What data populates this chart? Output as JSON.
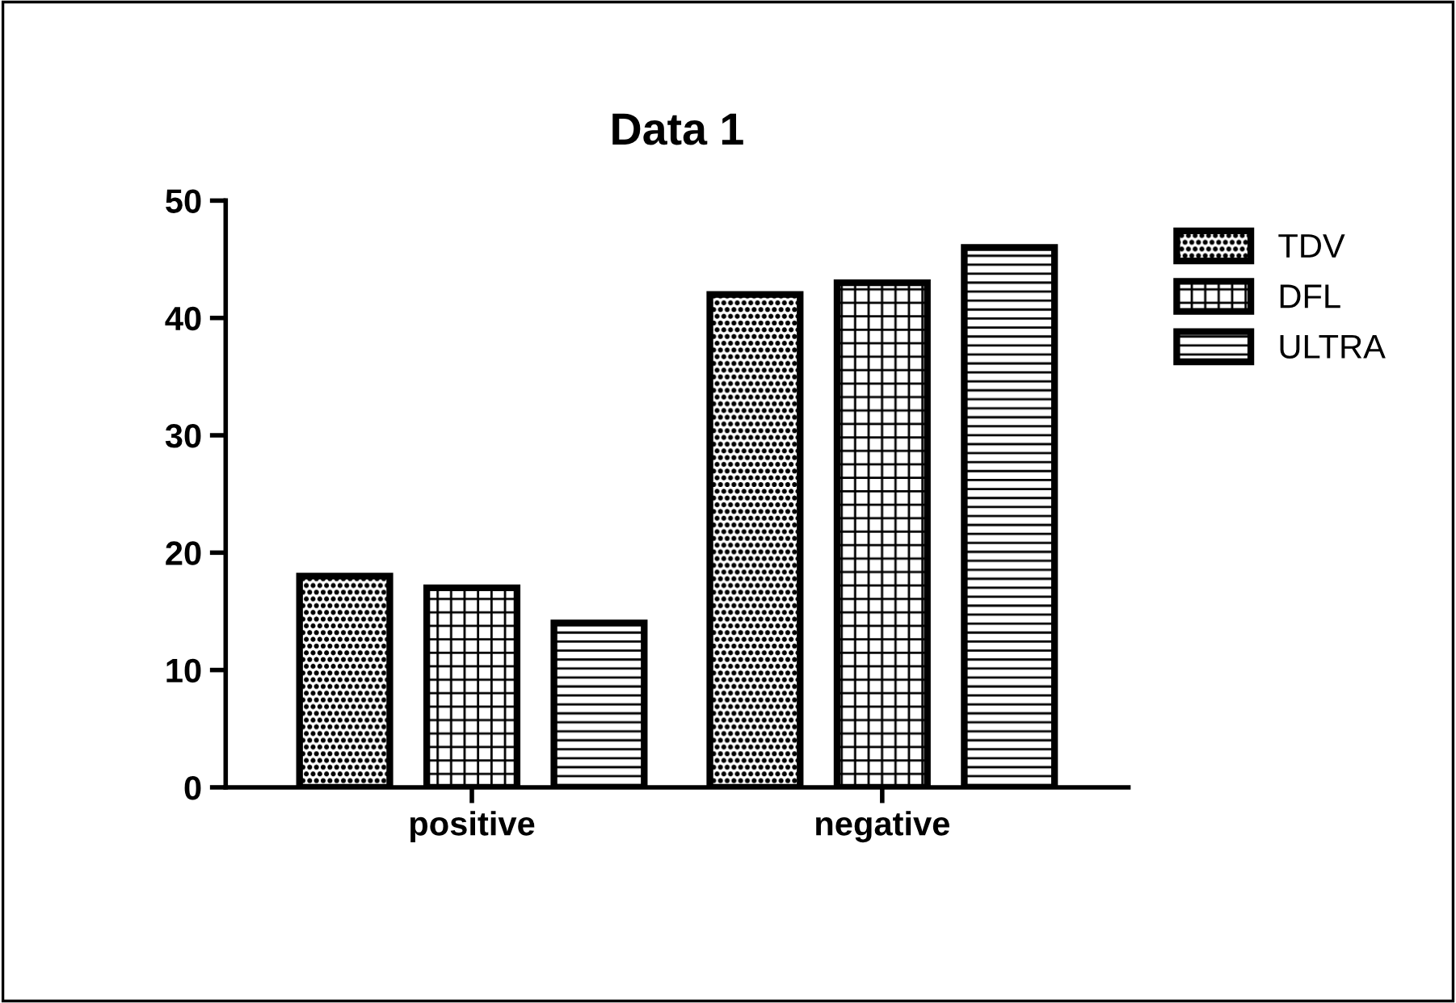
{
  "chart_data": {
    "type": "bar",
    "title": "Data 1",
    "categories": [
      "positive",
      "negative"
    ],
    "series": [
      {
        "name": "TDV",
        "color": "#000000",
        "values": [
          18,
          42
        ]
      },
      {
        "name": "DFL",
        "color": "#000000",
        "values": [
          17,
          43
        ]
      },
      {
        "name": "ULTRA",
        "color": "#000000",
        "values": [
          14,
          46
        ]
      }
    ],
    "ylim": [
      0,
      50
    ],
    "yticks": [
      0,
      10,
      20,
      30,
      40,
      50
    ],
    "grid": false,
    "legend": "top right"
  }
}
